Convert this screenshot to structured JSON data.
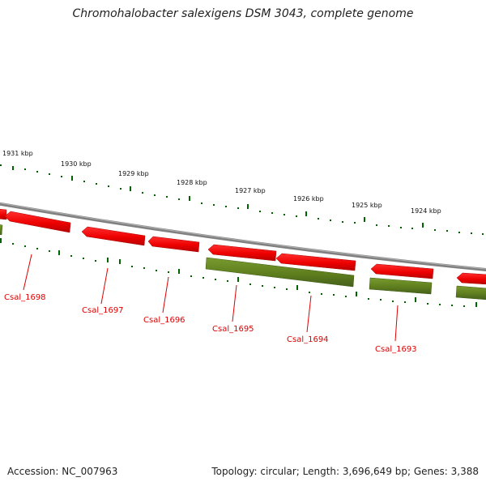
{
  "title": "Chromohalobacter salexigens DSM 3043, complete genome",
  "footer": {
    "accession": "Accession: NC_007963",
    "topology": "Topology: circular; Length: 3,696,649 bp; Genes: 3,388"
  },
  "ticks": [
    {
      "label": "1931 kbp"
    },
    {
      "label": "1930 kbp"
    },
    {
      "label": "1929 kbp"
    },
    {
      "label": "1928 kbp"
    },
    {
      "label": "1927 kbp"
    },
    {
      "label": "1926 kbp"
    },
    {
      "label": "1925 kbp"
    },
    {
      "label": "1924 kbp"
    }
  ],
  "genes": [
    {
      "label": "Csal_1698",
      "strand": "forward"
    },
    {
      "label": "Csal_1697",
      "strand": "forward"
    },
    {
      "label": "Csal_1696",
      "strand": "forward"
    },
    {
      "label": "Csal_1695",
      "strand": "reverse"
    },
    {
      "label": "Csal_1694",
      "strand": "forward"
    },
    {
      "label": "Csal_1693",
      "strand": "forward"
    }
  ],
  "colors": {
    "forward_gene": "#ff0000",
    "reverse_gene": "#6b8e23",
    "backbone": "#808080",
    "tick": "#006400",
    "gene_label": "#dd0000"
  }
}
